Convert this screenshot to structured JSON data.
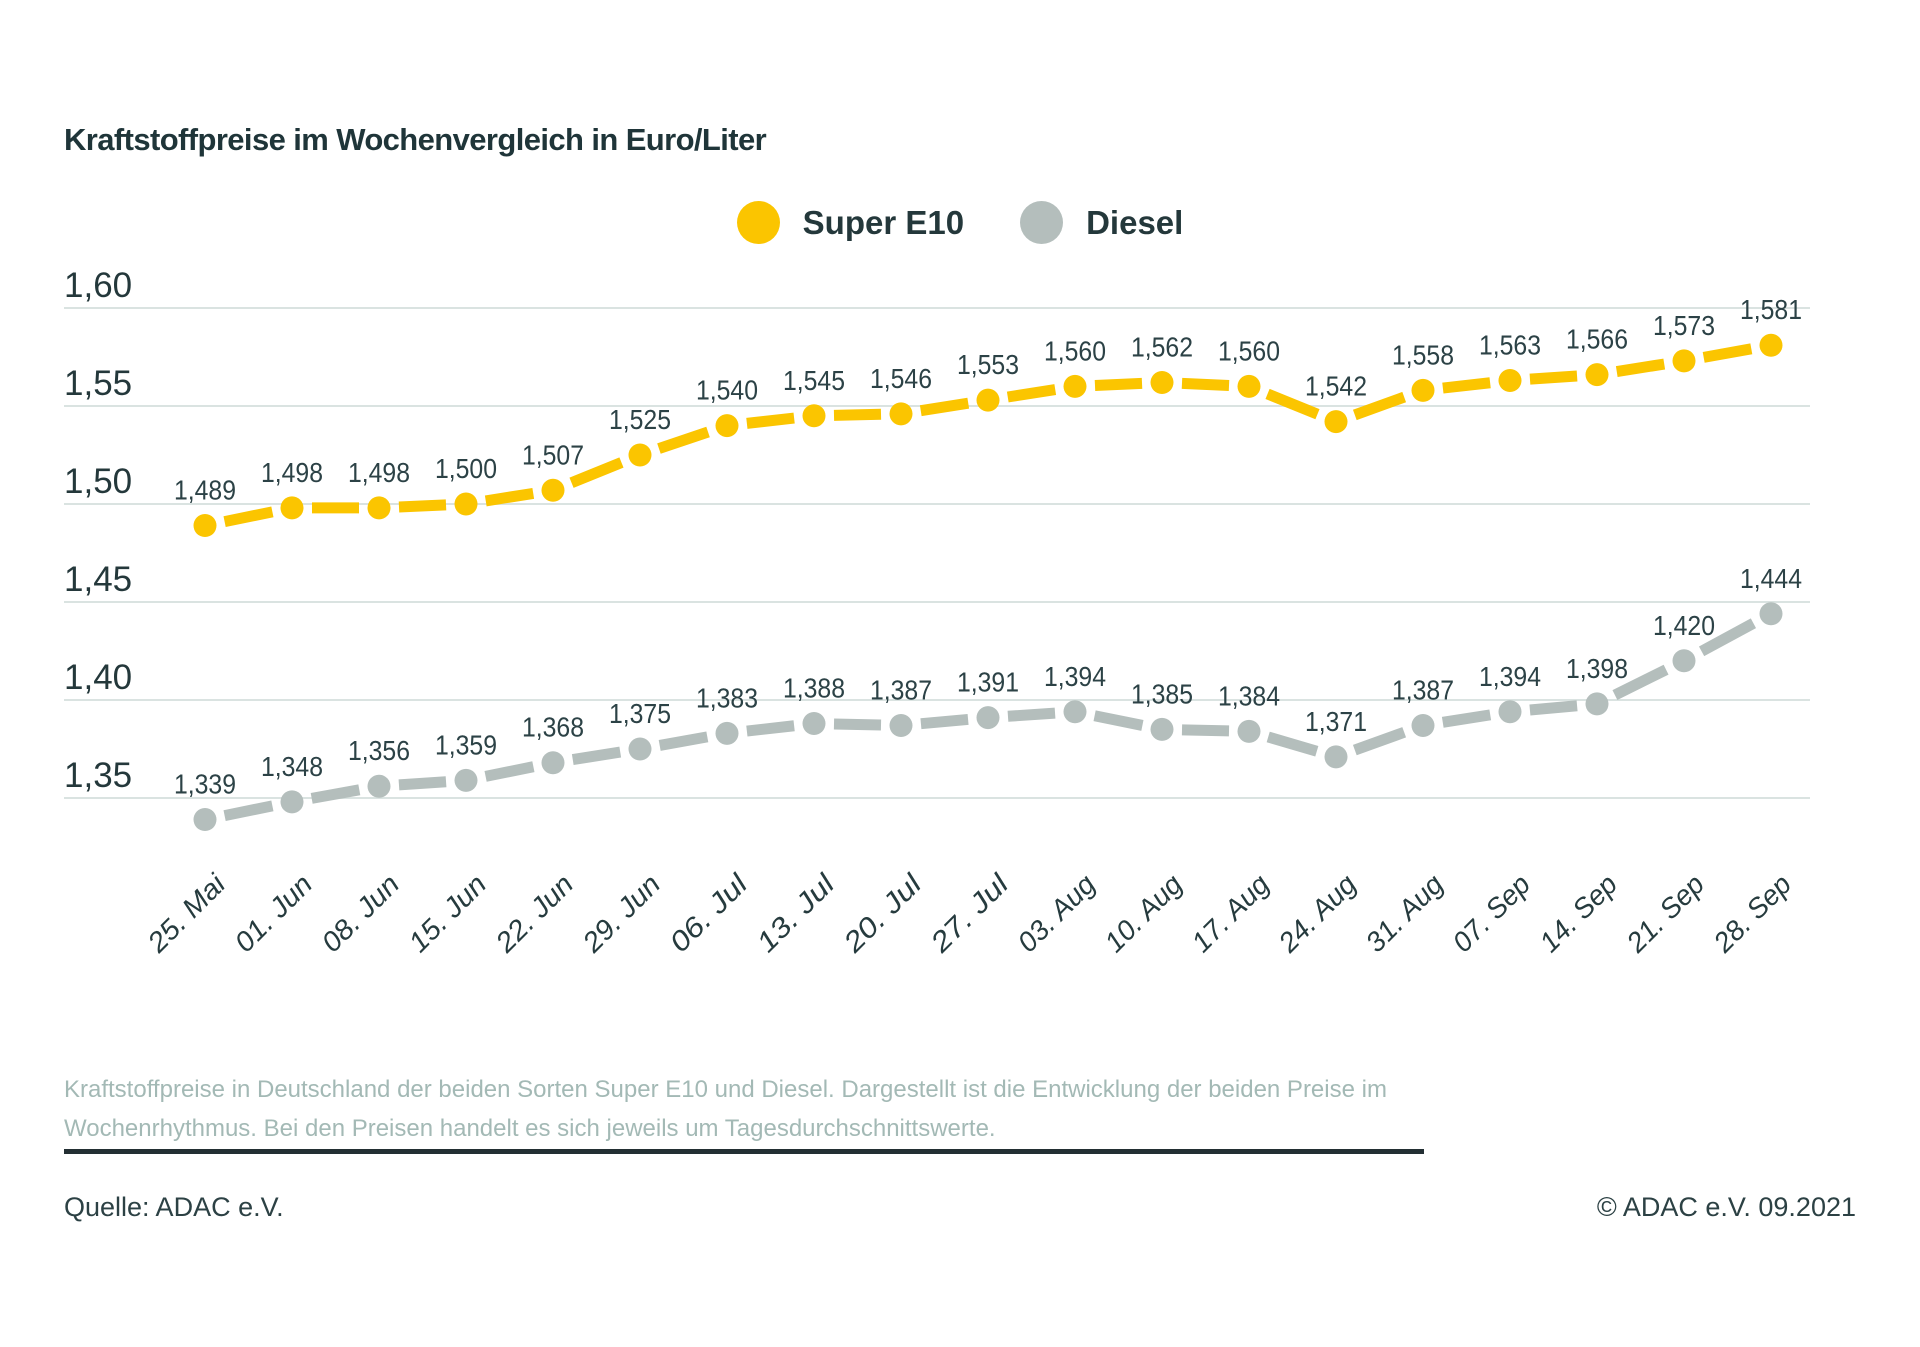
{
  "header": {
    "title": "Kraftstoffpreise im Wochenvergleich in Euro/Liter"
  },
  "legend": {
    "items": [
      {
        "label": "Super E10",
        "color": "#FBC500"
      },
      {
        "label": "Diesel",
        "color": "#B4BEBC"
      }
    ]
  },
  "chart_data": {
    "type": "line",
    "title": "Kraftstoffpreise im Wochenvergleich in Euro/Liter",
    "categories": [
      "25. Mai",
      "01. Jun",
      "08. Jun",
      "15. Jun",
      "22. Jun",
      "29. Jun",
      "06. Jul",
      "13. Jul",
      "20. Jul",
      "27. Jul",
      "03. Aug",
      "10. Aug",
      "17. Aug",
      "24. Aug",
      "31. Aug",
      "07. Sep",
      "14. Sep",
      "21. Sep",
      "28. Sep"
    ],
    "series": [
      {
        "name": "Super E10",
        "color": "#FBC500",
        "values": [
          1.489,
          1.498,
          1.498,
          1.5,
          1.507,
          1.525,
          1.54,
          1.545,
          1.546,
          1.553,
          1.56,
          1.562,
          1.56,
          1.542,
          1.558,
          1.563,
          1.566,
          1.573,
          1.581
        ]
      },
      {
        "name": "Diesel",
        "color": "#B4BEBC",
        "values": [
          1.339,
          1.348,
          1.356,
          1.359,
          1.368,
          1.375,
          1.383,
          1.388,
          1.387,
          1.391,
          1.394,
          1.385,
          1.384,
          1.371,
          1.387,
          1.394,
          1.398,
          1.42,
          1.444
        ]
      }
    ],
    "xlabel": "",
    "ylabel": "Euro/Liter",
    "yticks": [
      1.6,
      1.55,
      1.5,
      1.45,
      1.4,
      1.35
    ],
    "ylim": [
      1.3,
      1.625
    ],
    "grid": true,
    "legend_position": "top-center",
    "point_labels": true,
    "number_format": "german-comma",
    "grid_color": "#DAE3E1",
    "text_color": "#24383B"
  },
  "description": {
    "text": "Kraftstoffpreise in Deutschland der beiden Sorten Super E10 und Diesel. Dargestellt ist die Entwicklung der beiden Preise im Wochenrhythmus. Bei den Preisen handelt es sich jeweils um Tagesdurchschnittswerte."
  },
  "footer": {
    "source": "Quelle: ADAC e.V.",
    "copyright": "© ADAC e.V. 09.2021"
  }
}
